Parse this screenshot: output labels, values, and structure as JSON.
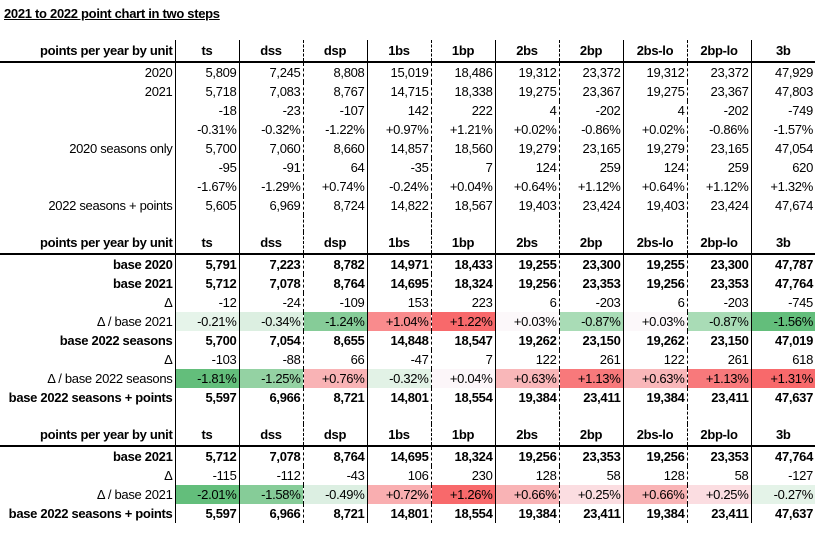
{
  "title": "2021 to 2022 point chart in two steps",
  "columns": [
    "ts",
    "dss",
    "dsp",
    "1bs",
    "1bp",
    "2bs",
    "2bp",
    "2bs-lo",
    "2bp-lo",
    "3b"
  ],
  "colors": {
    "green_strong": "#63be7b",
    "red_strong": "#f8696b"
  },
  "tables": [
    {
      "header": "points per year by unit",
      "rows": [
        {
          "label": "2020",
          "bold": false,
          "values": [
            "5,809",
            "7,245",
            "8,808",
            "15,019",
            "18,486",
            "19,312",
            "23,372",
            "19,312",
            "23,372",
            "47,929"
          ]
        },
        {
          "label": "2021",
          "bold": false,
          "values": [
            "5,718",
            "7,083",
            "8,767",
            "14,715",
            "18,338",
            "19,275",
            "23,367",
            "19,275",
            "23,367",
            "47,803"
          ]
        },
        {
          "label": "",
          "bold": false,
          "values": [
            "-18",
            "-23",
            "-107",
            "142",
            "222",
            "4",
            "-202",
            "4",
            "-202",
            "-749"
          ]
        },
        {
          "label": "",
          "bold": false,
          "values": [
            "-0.31%",
            "-0.32%",
            "-1.22%",
            "+0.97%",
            "+1.21%",
            "+0.02%",
            "-0.86%",
            "+0.02%",
            "-0.86%",
            "-1.57%"
          ]
        },
        {
          "label": "2020 seasons only",
          "bold": false,
          "values": [
            "5,700",
            "7,060",
            "8,660",
            "14,857",
            "18,560",
            "19,279",
            "23,165",
            "19,279",
            "23,165",
            "47,054"
          ]
        },
        {
          "label": "",
          "bold": false,
          "values": [
            "-95",
            "-91",
            "64",
            "-35",
            "7",
            "124",
            "259",
            "124",
            "259",
            "620"
          ]
        },
        {
          "label": "",
          "bold": false,
          "values": [
            "-1.67%",
            "-1.29%",
            "+0.74%",
            "-0.24%",
            "+0.04%",
            "+0.64%",
            "+1.12%",
            "+0.64%",
            "+1.12%",
            "+1.32%"
          ]
        },
        {
          "label": "2022 seasons + points",
          "bold": false,
          "values": [
            "5,605",
            "6,969",
            "8,724",
            "14,822",
            "18,567",
            "19,403",
            "23,424",
            "19,403",
            "23,424",
            "47,674"
          ]
        }
      ]
    },
    {
      "header": "points per year by unit",
      "rows": [
        {
          "label": "base 2020",
          "bold": true,
          "values": [
            "5,791",
            "7,223",
            "8,782",
            "14,971",
            "18,433",
            "19,255",
            "23,300",
            "19,255",
            "23,300",
            "47,787"
          ]
        },
        {
          "label": "base 2021",
          "bold": true,
          "values": [
            "5,712",
            "7,078",
            "8,764",
            "14,695",
            "18,324",
            "19,256",
            "23,353",
            "19,256",
            "23,353",
            "47,764"
          ]
        },
        {
          "label": "Δ",
          "bold": false,
          "values": [
            "-12",
            "-24",
            "-109",
            "153",
            "223",
            "6",
            "-203",
            "6",
            "-203",
            "-745"
          ]
        },
        {
          "label": "Δ / base 2021",
          "bold": false,
          "values": [
            "-0.21%",
            "-0.34%",
            "-1.24%",
            "+1.04%",
            "+1.22%",
            "+0.03%",
            "-0.87%",
            "+0.03%",
            "-0.87%",
            "-1.56%"
          ],
          "fills": [
            "#e6f4ea",
            "#dcefe1",
            "#86cc98",
            "#f98b8d",
            "#f8696b",
            "#fcf8fa",
            "#a9dcb6",
            "#fcf8fa",
            "#a9dcb6",
            "#63be7b"
          ]
        },
        {
          "label": "base 2022 seasons",
          "bold": true,
          "values": [
            "5,700",
            "7,054",
            "8,655",
            "14,848",
            "18,547",
            "19,262",
            "23,150",
            "19,262",
            "23,150",
            "47,019"
          ]
        },
        {
          "label": "Δ",
          "bold": false,
          "values": [
            "-103",
            "-88",
            "66",
            "-47",
            "7",
            "122",
            "261",
            "122",
            "261",
            "618"
          ]
        },
        {
          "label": "Δ / base 2022 seasons",
          "bold": false,
          "values": [
            "-1.81%",
            "-1.25%",
            "+0.76%",
            "-0.32%",
            "+0.04%",
            "+0.63%",
            "+1.13%",
            "+0.63%",
            "+1.13%",
            "+1.31%"
          ],
          "fills": [
            "#63be7b",
            "#94d2a3",
            "#f9b3b5",
            "#e2f2e6",
            "#fcf6f9",
            "#f9b7b9",
            "#f8797b",
            "#f9b7b9",
            "#f8797b",
            "#f8696b"
          ]
        },
        {
          "label": "base 2022 seasons + points",
          "bold": true,
          "values": [
            "5,597",
            "6,966",
            "8,721",
            "14,801",
            "18,554",
            "19,384",
            "23,411",
            "19,384",
            "23,411",
            "47,637"
          ]
        }
      ]
    },
    {
      "header": "points per year by unit",
      "rows": [
        {
          "label": "base 2021",
          "bold": true,
          "values": [
            "5,712",
            "7,078",
            "8,764",
            "14,695",
            "18,324",
            "19,256",
            "23,353",
            "19,256",
            "23,353",
            "47,764"
          ]
        },
        {
          "label": "Δ",
          "bold": false,
          "values": [
            "-115",
            "-112",
            "-43",
            "106",
            "230",
            "128",
            "58",
            "128",
            "58",
            "-127"
          ]
        },
        {
          "label": "Δ / base 2021",
          "bold": false,
          "values": [
            "-2.01%",
            "-1.58%",
            "-0.49%",
            "+0.72%",
            "+1.26%",
            "+0.66%",
            "+0.25%",
            "+0.66%",
            "+0.25%",
            "-0.27%"
          ],
          "fills": [
            "#63be7b",
            "#86cc98",
            "#dcefe2",
            "#f9aeb0",
            "#f8696b",
            "#f9b3b5",
            "#fbdde1",
            "#f9b3b5",
            "#fbdde1",
            "#e4f3e8"
          ]
        },
        {
          "label": "base 2022 seasons + points",
          "bold": true,
          "values": [
            "5,597",
            "6,966",
            "8,721",
            "14,801",
            "18,554",
            "19,384",
            "23,411",
            "19,384",
            "23,411",
            "47,637"
          ]
        }
      ]
    }
  ]
}
